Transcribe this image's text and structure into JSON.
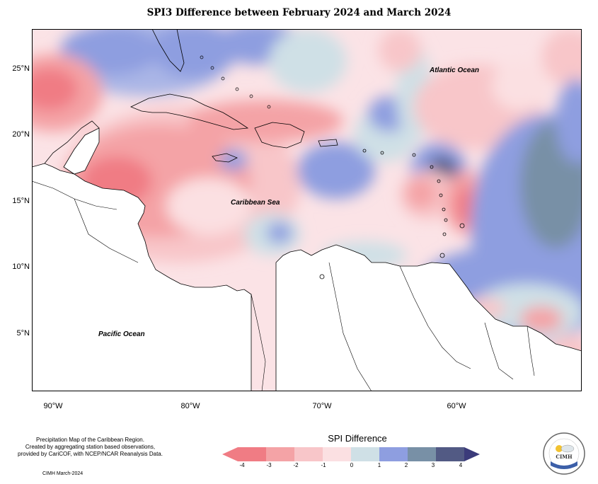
{
  "title": "SPI3 Difference between February 2024 and March 2024",
  "map": {
    "lat_labels": [
      "25°N",
      "20°N",
      "15°N",
      "10°N",
      "5°N"
    ],
    "lon_labels": [
      "90°W",
      "80°W",
      "70°W",
      "60°W"
    ],
    "ocean_labels": {
      "atlantic": "Atlantic Ocean",
      "caribbean": "Caribbean Sea",
      "pacific": "Pacific Ocean"
    }
  },
  "footer": {
    "line1": "Precipitation Map of the Caribbean Region.",
    "line2": "Created by aggregating station based observations,",
    "line3": "provided by CariCOF, with NCEP/NCAR Reanalysis Data.",
    "credit": "CIMH March-2024"
  },
  "legend": {
    "title": "SPI Difference",
    "ticks": [
      "-4",
      "-3",
      "-2",
      "-1",
      "0",
      "1",
      "2",
      "3",
      "4"
    ],
    "colors": [
      "#f07c84",
      "#f4a3a6",
      "#f8c6c9",
      "#fbe0e2",
      "#cfe0e6",
      "#8e9ee0",
      "#7890a6",
      "#525a84",
      "#3b3b7a"
    ]
  },
  "logo": {
    "text": "CIMH"
  }
}
